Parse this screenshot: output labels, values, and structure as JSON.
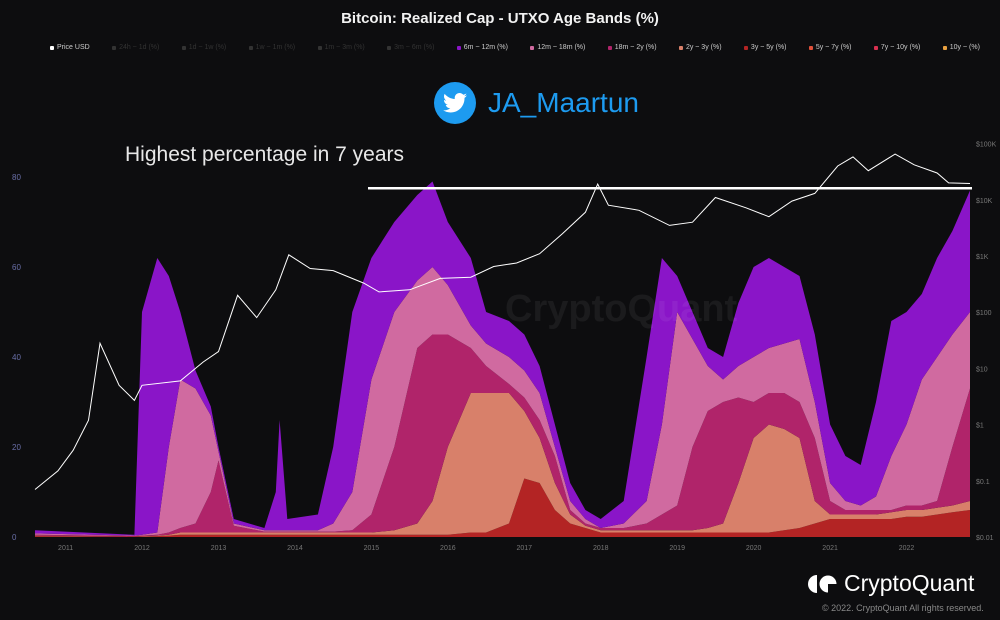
{
  "chart_data": {
    "type": "area",
    "stacked": true,
    "title": "Bitcoin: Realized Cap - UTXO Age Bands (%)",
    "annotation": "Highest percentage in 7 years",
    "annotation_line_value": 77.5,
    "y_left": {
      "range": [
        0,
        85
      ],
      "ticks": [
        "0",
        "20",
        "40",
        "60",
        "80"
      ],
      "tick_values": [
        0,
        20,
        40,
        60,
        80
      ]
    },
    "y_right": {
      "scale": "log",
      "range": [
        0.01,
        100000
      ],
      "ticks": [
        "$0.01",
        "$0.1",
        "$1",
        "$10",
        "$100",
        "$1K",
        "$10K",
        "$100K"
      ],
      "tick_values": [
        0.01,
        0.1,
        1,
        10,
        100,
        1000,
        10000,
        100000
      ]
    },
    "x": {
      "range": [
        2010.6,
        2022.83
      ],
      "ticks": [
        "2011",
        "2012",
        "2013",
        "2014",
        "2015",
        "2016",
        "2017",
        "2018",
        "2019",
        "2020",
        "2021",
        "2022"
      ],
      "tick_values": [
        2011,
        2012,
        2013,
        2014,
        2015,
        2016,
        2017,
        2018,
        2019,
        2020,
        2021,
        2022
      ]
    },
    "grid": false,
    "legend_position": "top",
    "legend": [
      {
        "name": "Price USD",
        "color": "#ffffff",
        "active": true
      },
      {
        "name": "24h ~ 1d (%)",
        "color": "#555555",
        "active": false
      },
      {
        "name": "1d ~ 1w (%)",
        "color": "#555555",
        "active": false
      },
      {
        "name": "1w ~ 1m (%)",
        "color": "#555555",
        "active": false
      },
      {
        "name": "1m ~ 3m (%)",
        "color": "#555555",
        "active": false
      },
      {
        "name": "3m ~ 6m (%)",
        "color": "#555555",
        "active": false
      },
      {
        "name": "6m ~ 12m (%)",
        "color": "#8a15c8",
        "active": true
      },
      {
        "name": "12m ~ 18m (%)",
        "color": "#d06aa0",
        "active": true
      },
      {
        "name": "18m ~ 2y (%)",
        "color": "#b0246a",
        "active": true
      },
      {
        "name": "2y ~ 3y (%)",
        "color": "#d8806a",
        "active": true
      },
      {
        "name": "3y ~ 5y (%)",
        "color": "#b32424",
        "active": true
      },
      {
        "name": "5y ~ 7y (%)",
        "color": "#e0503a",
        "active": true
      },
      {
        "name": "7y ~ 10y (%)",
        "color": "#d83050",
        "active": true
      },
      {
        "name": "10y ~ (%)",
        "color": "#e8a040",
        "active": true
      }
    ],
    "t": [
      2010.6,
      2011.9,
      2012.0,
      2012.2,
      2012.35,
      2012.5,
      2012.7,
      2012.9,
      2013.0,
      2013.2,
      2013.6,
      2013.75,
      2013.8,
      2013.9,
      2014.3,
      2014.5,
      2014.75,
      2015.0,
      2015.3,
      2015.6,
      2015.8,
      2016.0,
      2016.3,
      2016.5,
      2016.8,
      2017.0,
      2017.2,
      2017.4,
      2017.6,
      2017.8,
      2018.0,
      2018.3,
      2018.6,
      2018.8,
      2019.0,
      2019.2,
      2019.4,
      2019.6,
      2019.8,
      2020.0,
      2020.2,
      2020.4,
      2020.6,
      2020.8,
      2021.0,
      2021.2,
      2021.4,
      2021.6,
      2021.8,
      2022.0,
      2022.2,
      2022.4,
      2022.6,
      2022.83
    ],
    "series": [
      {
        "name": "3y ~ 5y (%)",
        "color": "#b32424",
        "values": [
          0.2,
          0.1,
          0.1,
          0.2,
          0.3,
          0.5,
          0.5,
          0.5,
          0.5,
          0.5,
          0.5,
          0.5,
          0.5,
          0.5,
          0.5,
          0.5,
          0.5,
          0.5,
          0.5,
          0.5,
          0.5,
          0.5,
          1,
          1,
          3,
          13,
          12,
          6,
          3,
          2,
          1,
          1,
          1,
          1,
          1,
          1,
          1,
          1,
          1,
          1,
          1,
          1.5,
          2,
          3,
          4,
          4,
          4,
          4,
          4,
          4.5,
          4.5,
          5,
          5.5,
          6
        ]
      },
      {
        "name": "2y ~ 3y (%)",
        "color": "#d8806a",
        "values": [
          0.1,
          0,
          0.1,
          0.1,
          0.2,
          0.5,
          0.5,
          0.5,
          0.5,
          0.5,
          0.5,
          0.5,
          0.5,
          0.5,
          0.5,
          0.5,
          0.5,
          0.5,
          1,
          2.5,
          7.5,
          19.5,
          31,
          31,
          29,
          15,
          10,
          6,
          2,
          0.5,
          0.5,
          0.5,
          0.5,
          0.5,
          0.5,
          0.5,
          1,
          2,
          11,
          21,
          24,
          22.5,
          20,
          5,
          1,
          1,
          1,
          1,
          1.5,
          1.5,
          1.5,
          1.5,
          1.5,
          2
        ]
      },
      {
        "name": "18m ~ 2y (%)",
        "color": "#b0246a",
        "values": [
          0.2,
          0.1,
          0.1,
          0.2,
          0.5,
          1,
          2,
          9,
          16,
          1.5,
          0.2,
          0.2,
          0.2,
          0.2,
          0.2,
          0.2,
          0.5,
          4,
          18.5,
          39,
          37,
          25,
          10,
          6,
          2,
          3,
          4,
          6,
          1,
          0.5,
          0.5,
          0.5,
          1.5,
          3.5,
          5.5,
          18.5,
          26,
          27,
          19,
          8,
          7,
          8,
          8,
          14,
          3,
          1,
          1,
          1,
          0.5,
          1,
          1,
          1.5,
          13,
          25
        ]
      },
      {
        "name": "12m ~ 18m (%)",
        "color": "#d06aa0",
        "values": [
          0.3,
          0.1,
          0.2,
          0.5,
          19,
          33,
          30,
          17,
          2,
          0.5,
          0.3,
          0.3,
          0.3,
          0.3,
          0.3,
          1.8,
          8.5,
          30,
          30,
          15,
          15,
          11,
          5,
          5,
          6,
          6,
          6,
          2,
          2,
          1,
          0,
          1,
          5,
          20,
          43,
          24,
          10,
          5,
          7,
          10,
          10,
          11,
          14,
          8,
          4,
          2,
          1,
          3,
          12,
          18,
          28,
          32,
          25,
          17
        ]
      },
      {
        "name": "6m ~ 12m (%)",
        "color": "#8a15c8",
        "values": [
          0.7,
          0.2,
          49.5,
          61,
          38,
          15,
          4,
          2,
          1,
          1,
          0.5,
          8.5,
          24.5,
          2.5,
          3.5,
          17,
          40,
          27,
          20,
          19,
          19,
          14,
          15,
          7,
          8,
          8,
          6,
          5,
          4,
          2,
          2,
          5,
          32,
          37,
          8,
          6,
          4,
          5,
          14,
          20,
          20,
          17,
          14,
          15,
          13,
          10,
          9,
          21,
          30,
          25,
          19,
          22,
          23,
          27
        ]
      }
    ],
    "price": {
      "name": "Price USD",
      "color": "#ffffff",
      "t": [
        2010.6,
        2010.9,
        2011.1,
        2011.3,
        2011.45,
        2011.7,
        2011.9,
        2012.0,
        2012.5,
        2012.8,
        2013.0,
        2013.25,
        2013.5,
        2013.75,
        2013.92,
        2014.2,
        2014.5,
        2014.9,
        2015.1,
        2015.5,
        2015.9,
        2016.3,
        2016.6,
        2016.9,
        2017.2,
        2017.5,
        2017.8,
        2017.96,
        2018.1,
        2018.5,
        2018.9,
        2019.2,
        2019.5,
        2019.9,
        2020.2,
        2020.5,
        2020.8,
        2021.1,
        2021.3,
        2021.5,
        2021.85,
        2022.1,
        2022.4,
        2022.55,
        2022.83
      ],
      "values": [
        0.07,
        0.15,
        0.35,
        1.2,
        28,
        5,
        2.7,
        5,
        6,
        13,
        20,
        200,
        80,
        250,
        1050,
        600,
        550,
        330,
        230,
        250,
        400,
        420,
        650,
        750,
        1100,
        2500,
        6000,
        19000,
        8000,
        6500,
        3500,
        4000,
        11000,
        7200,
        5000,
        9500,
        13000,
        40000,
        58000,
        33000,
        65000,
        42000,
        30000,
        20000,
        19500
      ]
    }
  },
  "twitter": {
    "icon": "twitter-bird-icon",
    "handle": "JA_Maartun",
    "color": "#1d9bf0"
  },
  "watermark": "CryptoQuant",
  "brand": {
    "name": "CryptoQuant",
    "copyright": "© 2022. CryptoQuant All rights reserved."
  }
}
